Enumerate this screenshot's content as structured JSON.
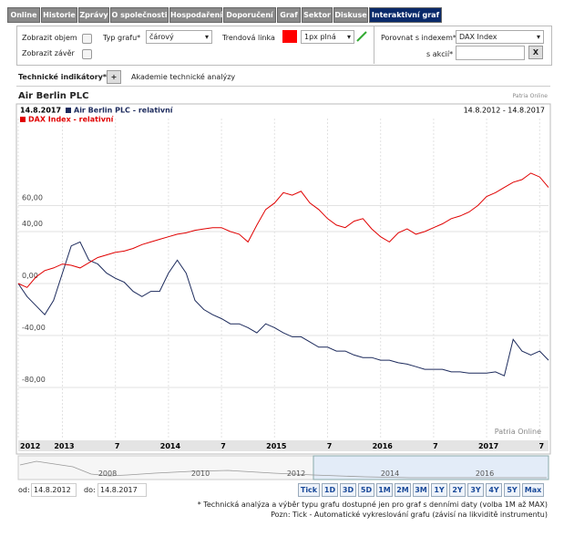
{
  "tabs": [
    {
      "label": "Online"
    },
    {
      "label": "Historie"
    },
    {
      "label": "Zprávy"
    },
    {
      "label": "O společnosti"
    },
    {
      "label": "Hospodaření"
    },
    {
      "label": "Doporučení"
    },
    {
      "label": "Graf"
    },
    {
      "label": "Sektor"
    },
    {
      "label": "Diskuse"
    },
    {
      "label": "Interaktivní graf",
      "active": true
    }
  ],
  "controls": {
    "show_volume": "Zobrazit objem",
    "show_close": "Zobrazit závěr",
    "chart_type_label": "Typ grafu*",
    "chart_type_value": "čárový",
    "trend_label": "Trendová linka",
    "trend_color": "#ff0000",
    "trend_style": "1px plná",
    "compare_index_label": "Porovnat s indexem*",
    "compare_index_value": "DAX Index",
    "compare_stock_label": "s akcií*",
    "clear": "X",
    "indicators_label": "Technické indikátory*:",
    "add": "+",
    "academy": "Akademie technické analýzy"
  },
  "chart": {
    "type": "line",
    "title": "Air Berlin PLC",
    "source": "Patria Online",
    "date": "14.8.2017",
    "range": "14.8.2012 - 14.8.2017",
    "watermark": "Patria Online",
    "x": [
      0,
      1,
      2,
      3,
      4,
      5,
      6,
      7,
      8,
      9,
      10,
      11,
      12,
      13,
      14,
      15,
      16,
      17,
      18,
      19,
      20,
      21,
      22,
      23,
      24,
      25,
      26,
      27,
      28,
      29,
      30,
      31,
      32,
      33,
      34,
      35,
      36,
      37,
      38,
      39,
      40,
      41,
      42,
      43,
      44,
      45,
      46,
      47,
      48,
      49,
      50,
      51,
      52,
      53,
      54,
      55,
      56,
      57,
      58,
      59,
      60
    ],
    "series": [
      {
        "name": "Air Berlin PLC - relativní",
        "color": "#1c2a5c",
        "values": [
          0,
          -10,
          -17,
          -24,
          -13,
          8,
          29,
          32,
          18,
          15,
          8,
          4,
          1,
          -6,
          -10,
          -6,
          -6,
          8,
          18,
          8,
          -13,
          -20,
          -24,
          -27,
          -31,
          -31,
          -34,
          -38,
          -31,
          -34,
          -38,
          -41,
          -41,
          -45,
          -49,
          -49,
          -52,
          -52,
          -55,
          -57,
          -57,
          -59,
          -59,
          -61,
          -62,
          -64,
          -66,
          -66,
          -66,
          -68,
          -68,
          -69,
          -69,
          -69,
          -68,
          -71,
          -43,
          -52,
          -55,
          -52,
          -59
        ]
      },
      {
        "name": "DAX Index - relativní",
        "color": "#e00000",
        "values": [
          0,
          -3,
          5,
          10,
          12,
          15,
          14,
          12,
          16,
          20,
          22,
          24,
          25,
          27,
          30,
          32,
          34,
          36,
          38,
          39,
          41,
          42,
          43,
          43,
          40,
          38,
          32,
          45,
          57,
          62,
          70,
          68,
          71,
          62,
          57,
          50,
          45,
          43,
          48,
          50,
          42,
          36,
          32,
          39,
          42,
          38,
          40,
          43,
          46,
          50,
          52,
          55,
          60,
          67,
          70,
          74,
          78,
          80,
          85,
          82,
          74
        ]
      }
    ],
    "xlim": [
      0,
      60
    ],
    "ylim": [
      -120,
      120
    ],
    "yticks": [
      {
        "value": 60,
        "label": "60,00"
      },
      {
        "value": 40,
        "label": "40,00"
      },
      {
        "value": 0,
        "label": "0,00"
      },
      {
        "value": -40,
        "label": "-40,00"
      },
      {
        "value": -80,
        "label": "-80,00"
      }
    ],
    "xticks": [
      {
        "value": 0,
        "label": "2012"
      },
      {
        "value": 5,
        "label": "2013"
      },
      {
        "value": 11,
        "label": "7"
      },
      {
        "value": 17,
        "label": "2014"
      },
      {
        "value": 23,
        "label": "7"
      },
      {
        "value": 29,
        "label": "2015"
      },
      {
        "value": 35,
        "label": "7"
      },
      {
        "value": 41,
        "label": "2016"
      },
      {
        "value": 47,
        "label": "7"
      },
      {
        "value": 53,
        "label": "2017"
      },
      {
        "value": 59,
        "label": "7"
      }
    ],
    "grid": true,
    "navigator_labels": [
      "2008",
      "2010",
      "2012",
      "2014",
      "2016"
    ]
  },
  "period": {
    "from_label": "od:",
    "from_value": "14.8.2012",
    "to_label": "do:",
    "to_value": "14.8.2017"
  },
  "buttons": [
    "Tick",
    "1D",
    "3D",
    "5D",
    "1M",
    "2M",
    "3M",
    "1Y",
    "2Y",
    "3Y",
    "4Y",
    "5Y",
    "Max"
  ],
  "notes": [
    "* Technická analýza a výběr typu grafu dostupné jen pro graf s denními daty (volba 1M až MAX)",
    "Pozn: Tick - Automatické vykreslování grafu (závisí na likviditě instrumentu)"
  ]
}
